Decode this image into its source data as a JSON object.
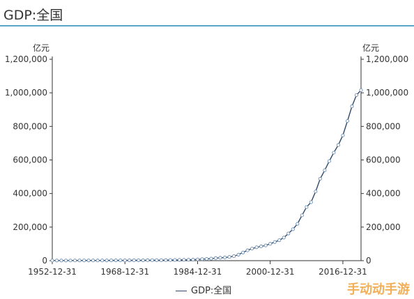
{
  "header": {
    "title": "GDP:全国"
  },
  "watermark": {
    "text": "手动动手游"
  },
  "chart_data": {
    "type": "line",
    "title": "GDP:全国",
    "y_unit_left": "亿元",
    "y_unit_right": "亿元",
    "ylim": [
      0,
      1200000
    ],
    "y_ticks": [
      0,
      200000,
      400000,
      600000,
      800000,
      1000000,
      1200000
    ],
    "y_tick_labels": [
      "0",
      "200,000",
      "400,000",
      "600,000",
      "800,000",
      "1,000,000",
      "1,200,000"
    ],
    "x_tick_labels": [
      "1952-12-31",
      "1968-12-31",
      "1984-12-31",
      "2000-12-31",
      "2016-12-31"
    ],
    "x_tick_years": [
      1952,
      1968,
      1984,
      2000,
      2016
    ],
    "xlim": [
      1952,
      2020
    ],
    "legend": {
      "position": "bottom-center"
    },
    "series": [
      {
        "name": "GDP:全国",
        "color": "#2f4a6b",
        "x": [
          1952,
          1953,
          1954,
          1955,
          1956,
          1957,
          1958,
          1959,
          1960,
          1961,
          1962,
          1963,
          1964,
          1965,
          1966,
          1967,
          1968,
          1969,
          1970,
          1971,
          1972,
          1973,
          1974,
          1975,
          1976,
          1977,
          1978,
          1979,
          1980,
          1981,
          1982,
          1983,
          1984,
          1985,
          1986,
          1987,
          1988,
          1989,
          1990,
          1991,
          1992,
          1993,
          1994,
          1995,
          1996,
          1997,
          1998,
          1999,
          2000,
          2001,
          2002,
          2003,
          2004,
          2005,
          2006,
          2007,
          2008,
          2009,
          2010,
          2011,
          2012,
          2013,
          2014,
          2015,
          2016,
          2017,
          2018,
          2019,
          2020
        ],
        "values": [
          679,
          824,
          859,
          911,
          1030,
          1071,
          1312,
          1448,
          1470,
          1232,
          1162,
          1248,
          1454,
          1717,
          1873,
          1780,
          1731,
          1946,
          2262,
          2456,
          2519,
          2721,
          2790,
          2998,
          2944,
          3222,
          3679,
          4101,
          4588,
          4936,
          5373,
          6021,
          7279,
          9099,
          10376,
          12175,
          15180,
          17180,
          18873,
          22006,
          27195,
          35673,
          48638,
          61340,
          71814,
          79715,
          85196,
          90564,
          100280,
          110863,
          121717,
          137422,
          161840,
          187319,
          219439,
          270092,
          319245,
          348518,
          412119,
          487940,
          538580,
          592963,
          643563,
          688858,
          746395,
          832036,
          919281,
          986515,
          1015986
        ]
      }
    ]
  }
}
